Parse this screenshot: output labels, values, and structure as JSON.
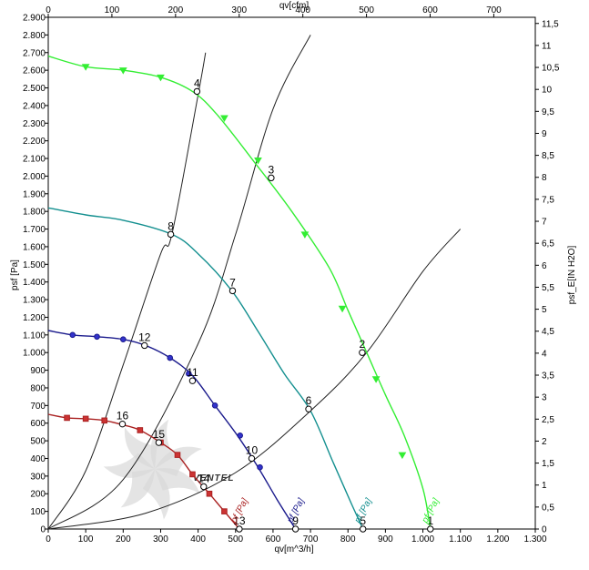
{
  "chart_data": {
    "type": "line",
    "title": "",
    "x_bottom": {
      "label": "qv[m^3/h]",
      "range": [
        0,
        1300
      ],
      "ticks": [
        0,
        100,
        200,
        300,
        400,
        500,
        600,
        700,
        800,
        900,
        1000,
        1100,
        1200,
        1300
      ],
      "tick_labels": [
        "0",
        "100",
        "200",
        "300",
        "400",
        "500",
        "600",
        "700",
        "800",
        "900",
        "1.000",
        "1.100",
        "1.200",
        "1.300"
      ]
    },
    "x_top": {
      "label": "qv[cfm]",
      "range": [
        0,
        765.2
      ],
      "ticks": [
        0,
        100,
        200,
        300,
        400,
        500,
        600,
        700
      ],
      "tick_labels": [
        "0",
        "100",
        "200",
        "300",
        "400",
        "500",
        "600",
        "700"
      ]
    },
    "y_left": {
      "label": "psf [Pa]",
      "range": [
        0,
        2900
      ],
      "ticks": [
        0,
        100,
        200,
        300,
        400,
        500,
        600,
        700,
        800,
        900,
        1000,
        1100,
        1200,
        1300,
        1400,
        1500,
        1600,
        1700,
        1800,
        1900,
        2000,
        2100,
        2200,
        2300,
        2400,
        2500,
        2600,
        2700,
        2800,
        2900
      ],
      "tick_labels": [
        "0",
        "100",
        "200",
        "300",
        "400",
        "500",
        "600",
        "700",
        "800",
        "900",
        "1.000",
        "1.100",
        "1.200",
        "1.300",
        "1.400",
        "1.500",
        "1.600",
        "1.700",
        "1.800",
        "1.900",
        "2.000",
        "2.100",
        "2.200",
        "2.300",
        "2.400",
        "2.500",
        "2.600",
        "2.700",
        "2.800",
        "2.900"
      ]
    },
    "y_right": {
      "label": "psf_E[IN H2O]",
      "range": [
        0,
        11.64
      ],
      "ticks": [
        0,
        0.5,
        1,
        1.5,
        2,
        2.5,
        3,
        3.5,
        4,
        4.5,
        5,
        5.5,
        6,
        6.5,
        7,
        7.5,
        8,
        8.5,
        9,
        9.5,
        10,
        10.5,
        11,
        11.5
      ],
      "tick_labels": [
        "0",
        "0,5",
        "1",
        "1,5",
        "2",
        "2,5",
        "3",
        "3,5",
        "4",
        "4,5",
        "5",
        "5,5",
        "6",
        "6,5",
        "7",
        "7,5",
        "8",
        "8,5",
        "9",
        "9,5",
        "10",
        "10,5",
        "11",
        "11,5"
      ]
    },
    "grid": false,
    "series": [
      {
        "name": "psf [Pa] (green)",
        "tag": "pf [Pa]",
        "color": "#33ee33",
        "marker": "triangle",
        "x": [
          0,
          100,
          200,
          300,
          385,
          450,
          550,
          650,
          750,
          800,
          850,
          900,
          950,
          1000,
          1020
        ],
        "y": [
          2680,
          2620,
          2600,
          2560,
          2480,
          2350,
          2080,
          1800,
          1480,
          1240,
          1000,
          760,
          530,
          230,
          0
        ],
        "marker_x": [
          100,
          200,
          300,
          470,
          560,
          685,
          785,
          875,
          945
        ],
        "marker_y": [
          2620,
          2600,
          2560,
          2330,
          2090,
          1670,
          1250,
          850,
          420
        ]
      },
      {
        "name": "psf [Pa] (teal)",
        "tag": "pf [Pa]",
        "color": "#138f8f",
        "marker": "none",
        "x": [
          0,
          100,
          200,
          330,
          400,
          490,
          560,
          630,
          700,
          760,
          810,
          840
        ],
        "y": [
          1820,
          1780,
          1750,
          1670,
          1560,
          1350,
          1120,
          880,
          670,
          380,
          140,
          0
        ],
        "marker_x": [],
        "marker_y": []
      },
      {
        "name": "psf [Pa] (navy)",
        "tag": "pf [Pa]",
        "color": "#1a1a8c",
        "marker": "circle",
        "x": [
          0,
          65,
          130,
          200,
          260,
          325,
          385,
          445,
          505,
          560,
          610,
          660
        ],
        "y": [
          1125,
          1100,
          1090,
          1075,
          1040,
          970,
          870,
          700,
          530,
          350,
          170,
          0
        ],
        "marker_x": [
          65,
          130,
          200,
          325,
          375,
          445,
          512,
          565
        ],
        "marker_y": [
          1100,
          1090,
          1075,
          970,
          880,
          700,
          530,
          350
        ],
        "marker_color": "#3333cc"
      },
      {
        "name": "psf [Pa] (red)",
        "tag": "pf [Pa]",
        "color": "#aa2222",
        "marker": "square",
        "x": [
          0,
          50,
          100,
          150,
          200,
          245,
          300,
          345,
          385,
          430,
          470,
          510
        ],
        "y": [
          650,
          630,
          625,
          615,
          590,
          560,
          490,
          420,
          310,
          200,
          100,
          0
        ],
        "marker_x": [
          50,
          100,
          150,
          245,
          300,
          345,
          385,
          430,
          470
        ],
        "marker_y": [
          630,
          625,
          615,
          560,
          490,
          420,
          310,
          200,
          100
        ],
        "marker_color": "#cc3333"
      }
    ],
    "system_curves": [
      {
        "x": [
          0,
          260,
          500,
          700,
          850,
          1000,
          1100
        ],
        "y": [
          0,
          90,
          320,
          670,
          1000,
          1460,
          1700
        ]
      },
      {
        "x": [
          0,
          200,
          400,
          500,
          600,
          700
        ],
        "y": [
          0,
          280,
          1050,
          1670,
          2380,
          2800
        ]
      },
      {
        "x": [
          0,
          100,
          200,
          300,
          330,
          400,
          420
        ],
        "y": [
          0,
          330,
          930,
          1560,
          1670,
          2460,
          2700
        ]
      }
    ],
    "operating_points": [
      {
        "label": "1",
        "x": 1020,
        "y": 0
      },
      {
        "label": "2",
        "x": 838,
        "y": 1000
      },
      {
        "label": "3",
        "x": 595,
        "y": 1990
      },
      {
        "label": "4",
        "x": 397,
        "y": 2480
      },
      {
        "label": "5",
        "x": 840,
        "y": 0
      },
      {
        "label": "6",
        "x": 695,
        "y": 680
      },
      {
        "label": "7",
        "x": 492,
        "y": 1350
      },
      {
        "label": "8",
        "x": 327,
        "y": 1670
      },
      {
        "label": "9",
        "x": 660,
        "y": 0
      },
      {
        "label": "10",
        "x": 543,
        "y": 400
      },
      {
        "label": "11",
        "x": 385,
        "y": 840
      },
      {
        "label": "12",
        "x": 257,
        "y": 1040
      },
      {
        "label": "13",
        "x": 510,
        "y": 0
      },
      {
        "label": "14",
        "x": 415,
        "y": 240
      },
      {
        "label": "15",
        "x": 295,
        "y": 490
      },
      {
        "label": "16",
        "x": 198,
        "y": 595
      }
    ],
    "watermark": "VENTEL"
  }
}
